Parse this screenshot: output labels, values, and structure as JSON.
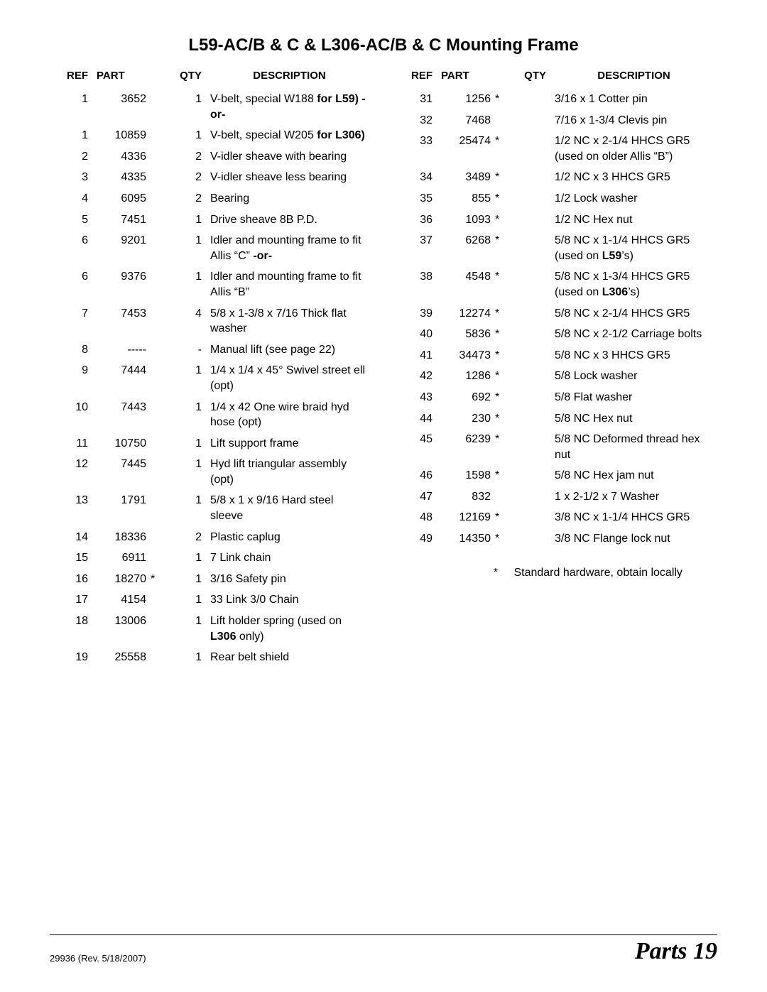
{
  "title": "L59-AC/B & C & L306-AC/B & C Mounting Frame",
  "headers": {
    "ref": "REF",
    "part": "PART",
    "qty": "QTY",
    "desc": "DESCRIPTION"
  },
  "left_rows": [
    {
      "ref": "1",
      "part": "3652",
      "star": "",
      "qty": "1",
      "desc": "V-belt, special W188 <b>for L59) -or-</b>"
    },
    {
      "ref": "1",
      "part": "10859",
      "star": "",
      "qty": "1",
      "desc": "V-belt, special W205 <b>for L306)</b>"
    },
    {
      "ref": "2",
      "part": "4336",
      "star": "",
      "qty": "2",
      "desc": "V-idler sheave with bearing"
    },
    {
      "ref": "3",
      "part": "4335",
      "star": "",
      "qty": "2",
      "desc": "V-idler sheave less bearing"
    },
    {
      "ref": "4",
      "part": "6095",
      "star": "",
      "qty": "2",
      "desc": "Bearing"
    },
    {
      "ref": "5",
      "part": "7451",
      "star": "",
      "qty": "1",
      "desc": "Drive sheave 8B P.D."
    },
    {
      "ref": "6",
      "part": "9201",
      "star": "",
      "qty": "1",
      "desc": "Idler and mounting frame to fit Allis “C” <b>-or-</b>"
    },
    {
      "ref": "6",
      "part": "9376",
      "star": "",
      "qty": "1",
      "desc": "Idler and mounting frame to fit Allis “B”"
    },
    {
      "ref": "7",
      "part": "7453",
      "star": "",
      "qty": "4",
      "desc": "5/8 x 1-3/8 x 7/16 Thick flat washer"
    },
    {
      "ref": "8",
      "part": "-----",
      "star": "",
      "qty": "-",
      "desc": "Manual lift (see page 22)"
    },
    {
      "ref": "9",
      "part": "7444",
      "star": "",
      "qty": "1",
      "desc": "1/4 x 1/4 x 45° Swivel street ell (opt)"
    },
    {
      "ref": "10",
      "part": "7443",
      "star": "",
      "qty": "1",
      "desc": "1/4 x 42 One wire braid hyd hose (opt)"
    },
    {
      "ref": "11",
      "part": "10750",
      "star": "",
      "qty": "1",
      "desc": "Lift support frame"
    },
    {
      "ref": "12",
      "part": "7445",
      "star": "",
      "qty": "1",
      "desc": "Hyd lift triangular assembly (opt)"
    },
    {
      "ref": "13",
      "part": "1791",
      "star": "",
      "qty": "1",
      "desc": "5/8 x 1 x 9/16 Hard steel sleeve"
    },
    {
      "ref": "14",
      "part": "18336",
      "star": "",
      "qty": "2",
      "desc": "Plastic caplug"
    },
    {
      "ref": "15",
      "part": "6911",
      "star": "",
      "qty": "1",
      "desc": "7 Link chain"
    },
    {
      "ref": "16",
      "part": "18270",
      "star": "*",
      "qty": "1",
      "desc": "3/16 Safety pin"
    },
    {
      "ref": "17",
      "part": "4154",
      "star": "",
      "qty": "1",
      "desc": "33 Link 3/0 Chain"
    },
    {
      "ref": "18",
      "part": "13006",
      "star": "",
      "qty": "1",
      "desc": "Lift holder spring (used on <b>L306</b> only)"
    },
    {
      "ref": "19",
      "part": "25558",
      "star": "",
      "qty": "1",
      "desc": "Rear belt shield"
    }
  ],
  "right_rows": [
    {
      "ref": "31",
      "part": "1256",
      "star": "*",
      "qty": "",
      "desc": "3/16 x 1 Cotter pin"
    },
    {
      "ref": "32",
      "part": "7468",
      "star": "",
      "qty": "",
      "desc": "7/16 x 1-3/4 Clevis pin"
    },
    {
      "ref": "33",
      "part": "25474",
      "star": "*",
      "qty": "",
      "desc": "1/2 NC x 2-1/4 HHCS GR5 (used on older Allis “B”)"
    },
    {
      "ref": "34",
      "part": "3489",
      "star": "*",
      "qty": "",
      "desc": "1/2 NC x 3 HHCS GR5"
    },
    {
      "ref": "35",
      "part": "855",
      "star": "*",
      "qty": "",
      "desc": "1/2 Lock washer"
    },
    {
      "ref": "36",
      "part": "1093",
      "star": "*",
      "qty": "",
      "desc": "1/2 NC Hex nut"
    },
    {
      "ref": "37",
      "part": "6268",
      "star": "*",
      "qty": "",
      "desc": "5/8 NC x 1-1/4 HHCS GR5 (used on <b>L59</b>’s)"
    },
    {
      "ref": "38",
      "part": "4548",
      "star": "*",
      "qty": "",
      "desc": "5/8 NC x 1-3/4 HHCS GR5 (used on <b>L306</b>’s)"
    },
    {
      "ref": "39",
      "part": "12274",
      "star": "*",
      "qty": "",
      "desc": "5/8 NC x 2-1/4 HHCS GR5"
    },
    {
      "ref": "40",
      "part": "5836",
      "star": "*",
      "qty": "",
      "desc": "5/8 NC x 2-1/2 Carriage bolts"
    },
    {
      "ref": "41",
      "part": "34473",
      "star": "*",
      "qty": "",
      "desc": "5/8 NC x 3 HHCS GR5"
    },
    {
      "ref": "42",
      "part": "1286",
      "star": "*",
      "qty": "",
      "desc": "5/8 Lock washer"
    },
    {
      "ref": "43",
      "part": "692",
      "star": "*",
      "qty": "",
      "desc": "5/8 Flat washer"
    },
    {
      "ref": "44",
      "part": "230",
      "star": "*",
      "qty": "",
      "desc": "5/8 NC Hex nut"
    },
    {
      "ref": "45",
      "part": "6239",
      "star": "*",
      "qty": "",
      "desc": "5/8 NC Deformed thread hex nut"
    },
    {
      "ref": "46",
      "part": "1598",
      "star": "*",
      "qty": "",
      "desc": "5/8 NC Hex jam nut"
    },
    {
      "ref": "47",
      "part": "832",
      "star": "",
      "qty": "",
      "desc": "1 x 2-1/2 x 7 Washer"
    },
    {
      "ref": "48",
      "part": "12169",
      "star": "*",
      "qty": "",
      "desc": "3/8 NC x 1-1/4 HHCS GR5"
    },
    {
      "ref": "49",
      "part": "14350",
      "star": "*",
      "qty": "",
      "desc": "3/8 NC Flange lock nut"
    }
  ],
  "footnote": {
    "mark": "*",
    "text": "Standard hardware, obtain locally"
  },
  "footer": {
    "left": "29936 (Rev. 5/18/2007)",
    "right_label": "Parts",
    "right_page": "19"
  }
}
